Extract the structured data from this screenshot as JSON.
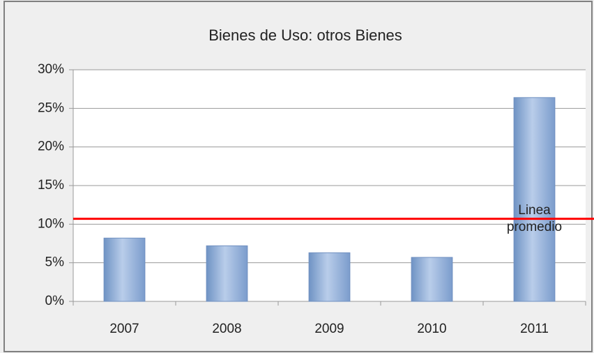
{
  "chart_data": {
    "type": "bar",
    "title": "Bienes de Uso: otros Bienes",
    "categories": [
      "2007",
      "2008",
      "2009",
      "2010",
      "2011"
    ],
    "values": [
      8.2,
      7.2,
      6.3,
      5.7,
      26.4
    ],
    "color": "#95b3d7",
    "ylim": [
      0,
      30
    ],
    "yticks": [
      {
        "value": 0,
        "label": "0%"
      },
      {
        "value": 5,
        "label": "5%"
      },
      {
        "value": 10,
        "label": "10%"
      },
      {
        "value": 15,
        "label": "15%"
      },
      {
        "value": 20,
        "label": "20%"
      },
      {
        "value": 25,
        "label": "25%"
      },
      {
        "value": 30,
        "label": "30%"
      }
    ],
    "grid": true,
    "average_line": {
      "value": 10.7,
      "label": "Linea promedio",
      "color": "#ff0000"
    }
  }
}
